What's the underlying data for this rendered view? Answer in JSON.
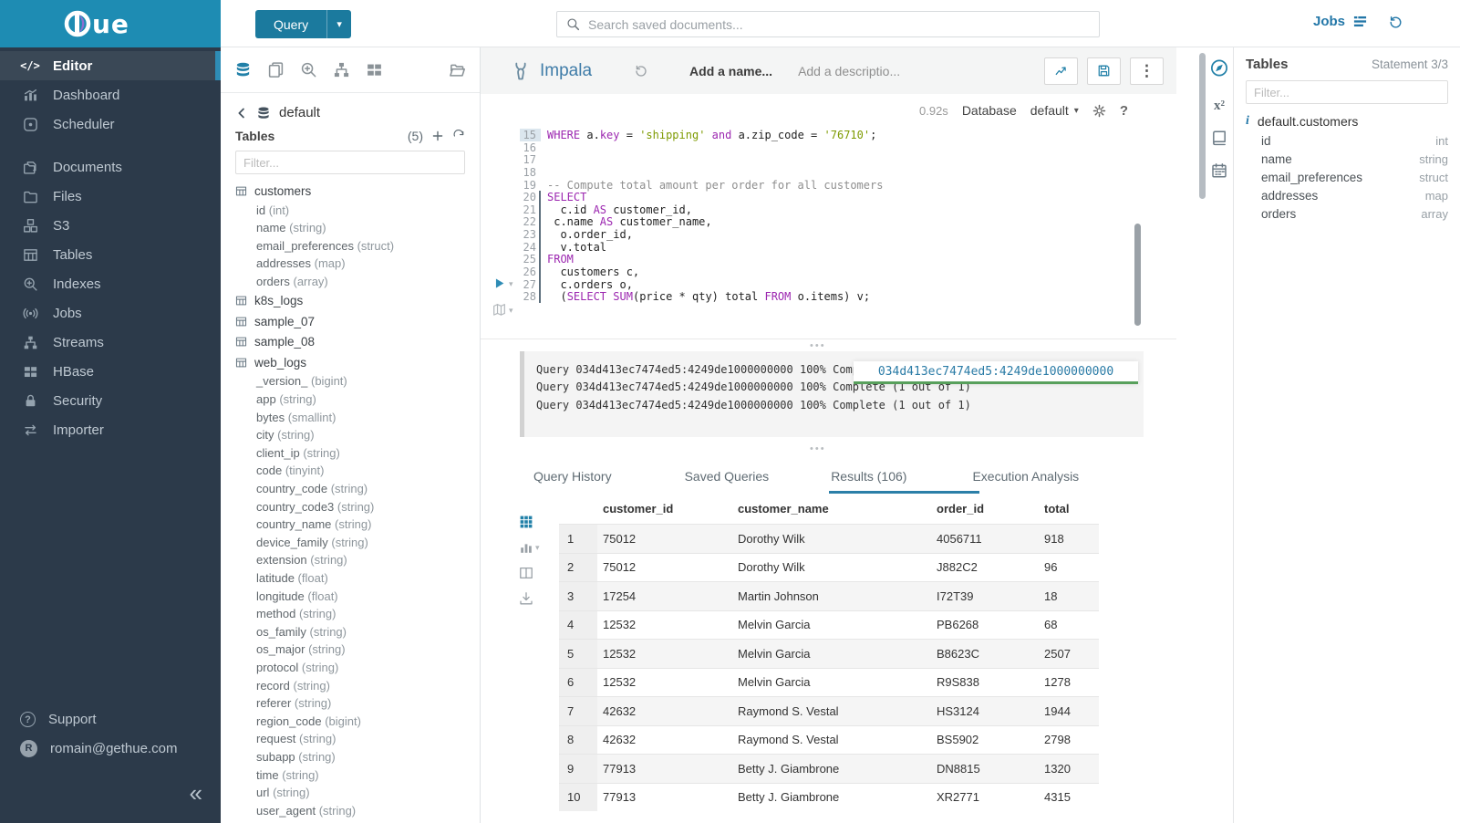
{
  "brand": {
    "logo_text": "ue",
    "masthead_color": "#1e8cb3",
    "logo_accent_purple": "#8d6fd1"
  },
  "topbar": {
    "query_button": {
      "label": "Query",
      "caret_icon": "caret-down-icon"
    },
    "search": {
      "placeholder": "Search saved documents...",
      "icon": "search-icon"
    },
    "jobs_label": "Jobs",
    "jobs_icon": "jobs-list-icon",
    "history_icon": "history-icon"
  },
  "sidebar": {
    "items": [
      {
        "label": "Editor",
        "icon": "code-icon",
        "active": true
      },
      {
        "label": "Dashboard",
        "icon": "dashboard-icon"
      },
      {
        "label": "Scheduler",
        "icon": "scheduler-icon"
      },
      {
        "label": "Documents",
        "icon": "documents-icon",
        "gap_before": true
      },
      {
        "label": "Files",
        "icon": "folder-icon"
      },
      {
        "label": "S3",
        "icon": "cubes-icon"
      },
      {
        "label": "Tables",
        "icon": "table-icon"
      },
      {
        "label": "Indexes",
        "icon": "search-plus-icon"
      },
      {
        "label": "Jobs",
        "icon": "broadcast-icon"
      },
      {
        "label": "Streams",
        "icon": "sitemap-icon"
      },
      {
        "label": "HBase",
        "icon": "blocks-icon"
      },
      {
        "label": "Security",
        "icon": "lock-icon"
      },
      {
        "label": "Importer",
        "icon": "swap-icon"
      }
    ],
    "support_label": "Support",
    "support_icon": "question-circle-icon",
    "user_initial": "R",
    "user_email": "romain@gethue.com",
    "collapse_icon": "double-chevron-left-icon"
  },
  "left_assist": {
    "toolbar_icons": [
      "database-icon",
      "copy-icon",
      "search-plus-icon",
      "sitemap-icon",
      "blocks-icon",
      "open-folder-icon"
    ],
    "breadcrumb": {
      "back_icon": "chevron-left-icon",
      "db_icon": "database-icon",
      "label": "default"
    },
    "tables_header": {
      "title": "Tables",
      "count": "(5)",
      "add_icon": "plus-icon",
      "refresh_icon": "refresh-icon"
    },
    "filter_placeholder": "Filter...",
    "tree": [
      {
        "name": "customers",
        "columns": [
          "id (int)",
          "name (string)",
          "email_preferences (struct)",
          "addresses (map)",
          "orders (array)"
        ]
      },
      {
        "name": "k8s_logs",
        "columns": []
      },
      {
        "name": "sample_07",
        "columns": []
      },
      {
        "name": "sample_08",
        "columns": []
      },
      {
        "name": "web_logs",
        "columns": [
          "_version_ (bigint)",
          "app (string)",
          "bytes (smallint)",
          "city (string)",
          "client_ip (string)",
          "code (tinyint)",
          "country_code (string)",
          "country_code3 (string)",
          "country_name (string)",
          "device_family (string)",
          "extension (string)",
          "latitude (float)",
          "longitude (float)",
          "method (string)",
          "os_family (string)",
          "os_major (string)",
          "protocol (string)",
          "record (string)",
          "referer (string)",
          "region_code (bigint)",
          "request (string)",
          "subapp (string)",
          "time (string)",
          "url (string)",
          "user_agent (string)"
        ]
      }
    ]
  },
  "editor": {
    "engine": "Impala",
    "engine_icon": "impala-icon",
    "undo_icon": "history-icon",
    "name_placeholder": "Add a name...",
    "description_placeholder": "Add a descriptio...",
    "action_icons": [
      "chart-line-icon",
      "save-icon",
      "kebab-icon"
    ],
    "duration": "0.92s",
    "database_label": "Database",
    "database_value": "default",
    "gear_icon": "gear-icon",
    "help_label": "?",
    "play_icon": "play-icon",
    "map_icon": "map-icon",
    "code_lines": [
      {
        "n": 15,
        "hl": true,
        "marker": false,
        "tokens": [
          [
            "k",
            "WHERE"
          ],
          [
            "t",
            " a."
          ],
          [
            "k",
            "key"
          ],
          [
            "t",
            " = "
          ],
          [
            "s",
            "'shipping'"
          ],
          [
            "t",
            " "
          ],
          [
            "k",
            "and"
          ],
          [
            "t",
            " a.zip_code = "
          ],
          [
            "s",
            "'76710'"
          ],
          [
            "t",
            ";"
          ]
        ]
      },
      {
        "n": 16,
        "tokens": []
      },
      {
        "n": 17,
        "tokens": []
      },
      {
        "n": 18,
        "tokens": []
      },
      {
        "n": 19,
        "tokens": [
          [
            "c",
            "-- Compute total amount per order for all customers"
          ]
        ]
      },
      {
        "n": 20,
        "marker": true,
        "tokens": [
          [
            "k",
            "SELECT"
          ]
        ]
      },
      {
        "n": 21,
        "marker": true,
        "tokens": [
          [
            "t",
            "  c.id "
          ],
          [
            "k",
            "AS"
          ],
          [
            "t",
            " customer_id,"
          ]
        ]
      },
      {
        "n": 22,
        "marker": true,
        "tokens": [
          [
            "t",
            " c.name "
          ],
          [
            "k",
            "AS"
          ],
          [
            "t",
            " customer_name,"
          ]
        ]
      },
      {
        "n": 23,
        "marker": true,
        "tokens": [
          [
            "t",
            "  o.order_id,"
          ]
        ]
      },
      {
        "n": 24,
        "marker": true,
        "tokens": [
          [
            "t",
            "  v.total"
          ]
        ]
      },
      {
        "n": 25,
        "marker": true,
        "tokens": [
          [
            "k",
            "FROM"
          ]
        ]
      },
      {
        "n": 26,
        "marker": true,
        "tokens": [
          [
            "t",
            "  customers c,"
          ]
        ]
      },
      {
        "n": 27,
        "marker": true,
        "tokens": [
          [
            "t",
            "  c.orders o,"
          ]
        ]
      },
      {
        "n": 28,
        "marker": true,
        "tokens": [
          [
            "t",
            "  ("
          ],
          [
            "k",
            "SELECT"
          ],
          [
            "t",
            " "
          ],
          [
            "k",
            "SUM"
          ],
          [
            "t",
            "(price * qty) total "
          ],
          [
            "k",
            "FROM"
          ],
          [
            "t",
            " o.items) v;"
          ]
        ]
      }
    ]
  },
  "logs": {
    "lines": [
      "Query 034d413ec7474ed5:4249de1000000000 100% Complete (1 out of 1)",
      "Query 034d413ec7474ed5:4249de1000000000 100% Complete (1 out of 1)",
      "Query 034d413ec7474ed5:4249de1000000000 100% Complete (1 out of 1)"
    ],
    "overlay_link": "034d413ec7474ed5:4249de1000000000"
  },
  "result_tabs": [
    {
      "label": "Query History"
    },
    {
      "label": "Saved Queries"
    },
    {
      "label": "Results (106)",
      "active": true
    },
    {
      "label": "Execution Analysis"
    }
  ],
  "results": {
    "rail_icons": [
      "grid-icon",
      "bar-chart-icon",
      "columns-icon",
      "download-icon"
    ],
    "columns": [
      "customer_id",
      "customer_name",
      "order_id",
      "total"
    ],
    "rows": [
      [
        "1",
        "75012",
        "Dorothy Wilk",
        "4056711",
        "918"
      ],
      [
        "2",
        "75012",
        "Dorothy Wilk",
        "J882C2",
        "96"
      ],
      [
        "3",
        "17254",
        "Martin Johnson",
        "I72T39",
        "18"
      ],
      [
        "4",
        "12532",
        "Melvin Garcia",
        "PB6268",
        "68"
      ],
      [
        "5",
        "12532",
        "Melvin Garcia",
        "B8623C",
        "2507"
      ],
      [
        "6",
        "12532",
        "Melvin Garcia",
        "R9S838",
        "1278"
      ],
      [
        "7",
        "42632",
        "Raymond S. Vestal",
        "HS3124",
        "1944"
      ],
      [
        "8",
        "42632",
        "Raymond S. Vestal",
        "BS5902",
        "2798"
      ],
      [
        "9",
        "77913",
        "Betty J. Giambrone",
        "DN8815",
        "1320"
      ],
      [
        "10",
        "77913",
        "Betty J. Giambrone",
        "XR2771",
        "4315"
      ]
    ]
  },
  "right_assist": {
    "icons": [
      "compass-icon",
      "superscript-icon",
      "book-icon",
      "calendar-icon"
    ],
    "panel": {
      "title": "Tables",
      "statement": "Statement 3/3",
      "filter_placeholder": "Filter...",
      "table": {
        "info_icon": "info-icon",
        "name": "default.customers",
        "columns": [
          {
            "name": "id",
            "type": "int"
          },
          {
            "name": "name",
            "type": "string"
          },
          {
            "name": "email_preferences",
            "type": "struct"
          },
          {
            "name": "addresses",
            "type": "map"
          },
          {
            "name": "orders",
            "type": "array"
          }
        ]
      }
    }
  }
}
